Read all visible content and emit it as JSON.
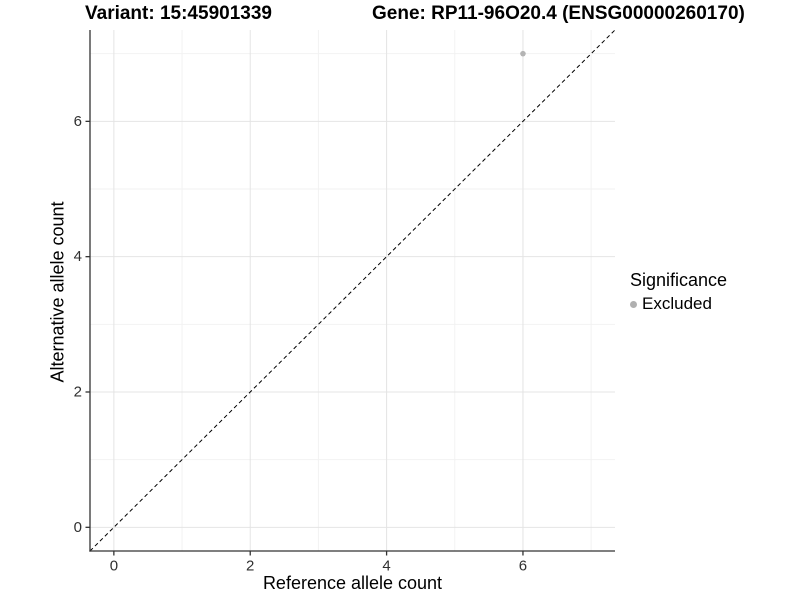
{
  "chart_data": {
    "type": "scatter",
    "title_left": "Variant: 15:45901339",
    "title_right": "Gene: RP11-96O20.4 (ENSG00000260170)",
    "xlabel": "Reference allele count",
    "ylabel": "Alternative allele count",
    "xlim": [
      -0.35,
      7.35
    ],
    "ylim": [
      -0.35,
      7.35
    ],
    "x_ticks": [
      0,
      2,
      4,
      6
    ],
    "y_ticks": [
      0,
      2,
      4,
      6
    ],
    "x_minor_gridlines": [
      1,
      3,
      5,
      7
    ],
    "y_minor_gridlines": [
      1,
      3,
      5,
      7
    ],
    "grid": "major-and-minor",
    "points": [
      {
        "x": 6,
        "y": 7,
        "group": "Excluded"
      }
    ],
    "identity_line": {
      "slope": 1,
      "intercept": 0,
      "style": "dashed",
      "color": "#000000"
    },
    "legend": {
      "title": "Significance",
      "position": "right",
      "items": [
        {
          "label": "Excluded",
          "color": "#b0b0b0",
          "marker": "circle"
        }
      ]
    },
    "colors": {
      "point": "#b4b4b4",
      "grid_major": "#e4e4e4",
      "grid_minor": "#f2f2f2",
      "axis_line": "#333333",
      "tick_label": "#303030",
      "title_text": "#000000"
    }
  }
}
